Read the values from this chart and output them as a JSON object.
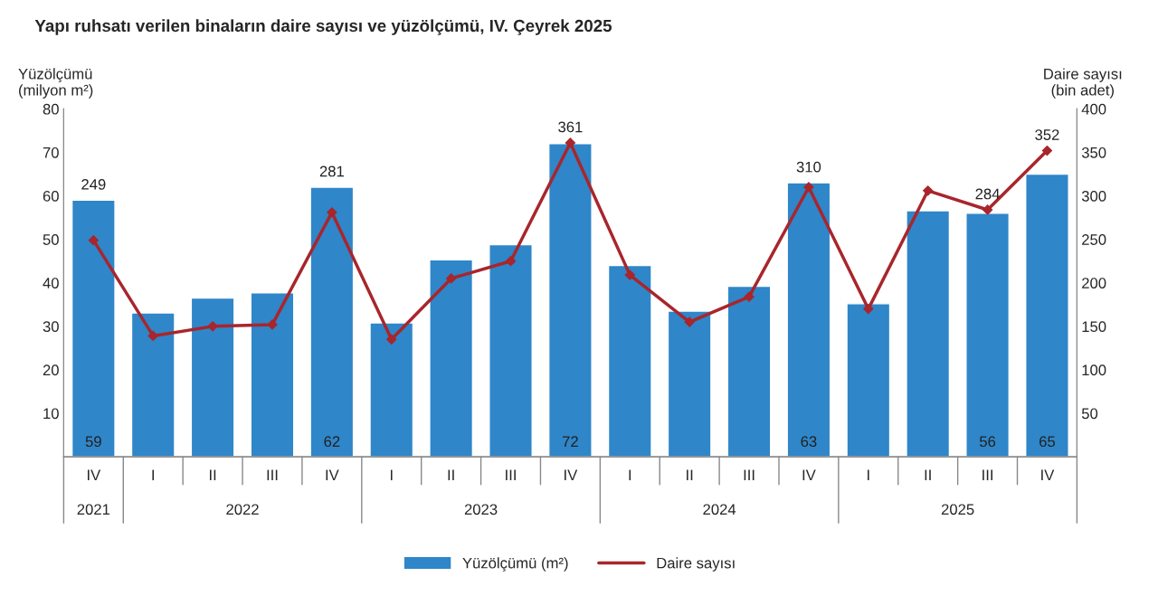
{
  "chart_data": {
    "type": "bar",
    "title": "Yapı ruhsatı verilen binaların daire sayısı ve yüzölçümü, IV. Çeyrek 2025",
    "ylabel": "Yüzölçümü\n(milyon m²)",
    "y2label": "Daire sayısı\n(bin adet)",
    "categories": [
      "IV",
      "I",
      "II",
      "III",
      "IV",
      "I",
      "II",
      "III",
      "IV",
      "I",
      "II",
      "III",
      "IV",
      "I",
      "II",
      "III",
      "IV"
    ],
    "annotations": [
      "2021",
      "2022",
      "2023",
      "2024",
      "2025"
    ],
    "series": [
      {
        "name": "Yüzölçümü (m²)",
        "color": "#2f86c9",
        "values": [
          59,
          33.1,
          36.5,
          37.7,
          62,
          30.8,
          45.3,
          48.8,
          72,
          44.0,
          33.5,
          39.2,
          63,
          35.2,
          56.6,
          56,
          65
        ],
        "value_labels": [
          "59",
          null,
          null,
          null,
          "62",
          null,
          null,
          null,
          "72",
          null,
          null,
          null,
          "63",
          null,
          null,
          "56",
          "65"
        ]
      },
      {
        "name": "Daire sayısı",
        "type": "line",
        "axis": "y2",
        "color": "#a8262c",
        "values": [
          249,
          139,
          150,
          152,
          281,
          135,
          205,
          225,
          361,
          209,
          155,
          184,
          310,
          170,
          306,
          284,
          352
        ],
        "value_labels": [
          "249",
          null,
          null,
          null,
          "281",
          null,
          null,
          null,
          "361",
          null,
          null,
          null,
          "310",
          null,
          null,
          "284",
          "352"
        ]
      }
    ],
    "ylim": [
      0,
      80
    ],
    "yticks": [
      10,
      20,
      30,
      40,
      50,
      60,
      70,
      80
    ],
    "y2lim": [
      0,
      400
    ],
    "y2ticks": [
      50,
      100,
      150,
      200,
      250,
      300,
      350,
      400
    ],
    "grid": false,
    "legend": "bottom",
    "marker": "diamond"
  }
}
